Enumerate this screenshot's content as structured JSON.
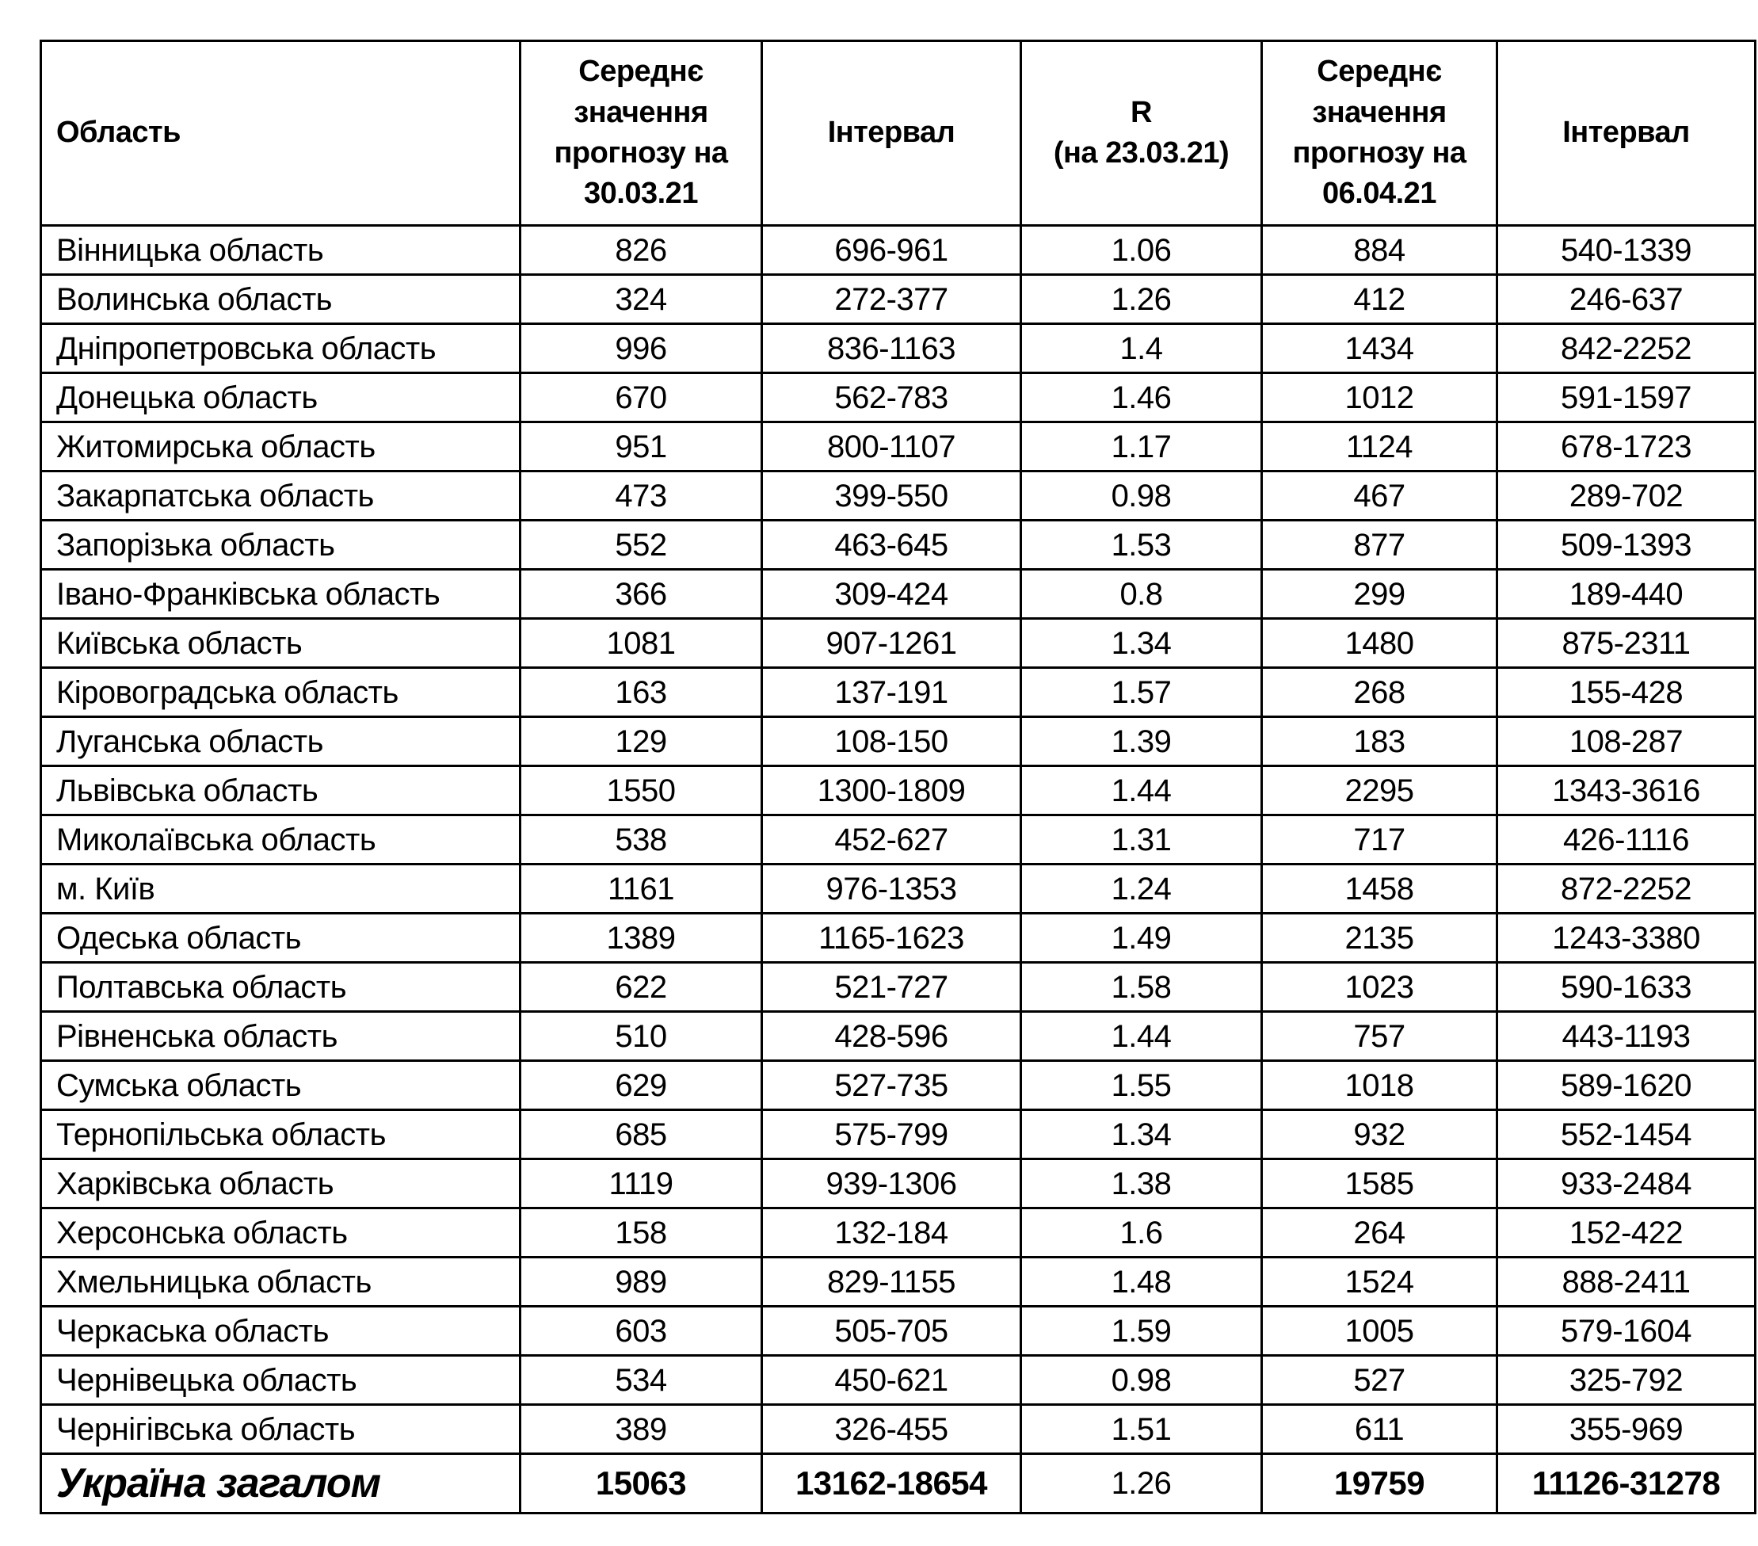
{
  "colors": {
    "background": "#ffffff",
    "text": "#000000",
    "border": "#000000"
  },
  "table": {
    "headers": {
      "region": "Область",
      "mean_30_03": "Середнє значення прогнозу на 30.03.21",
      "interval_1": "Інтервал",
      "r": "R\n(на 23.03.21)",
      "mean_06_04": "Середнє значення прогнозу на 06.04.21",
      "interval_2": "Інтервал"
    },
    "rows": [
      {
        "region": "Вінницька область",
        "mean_30_03": "826",
        "interval_30_03": "696-961",
        "r_value": "1.06",
        "mean_06_04": "884",
        "interval_06_04": "540-1339"
      },
      {
        "region": "Волинська область",
        "mean_30_03": "324",
        "interval_30_03": "272-377",
        "r_value": "1.26",
        "mean_06_04": "412",
        "interval_06_04": "246-637"
      },
      {
        "region": "Дніпропетровська область",
        "mean_30_03": "996",
        "interval_30_03": "836-1163",
        "r_value": "1.4",
        "mean_06_04": "1434",
        "interval_06_04": "842-2252"
      },
      {
        "region": "Донецька область",
        "mean_30_03": "670",
        "interval_30_03": "562-783",
        "r_value": "1.46",
        "mean_06_04": "1012",
        "interval_06_04": "591-1597"
      },
      {
        "region": "Житомирська область",
        "mean_30_03": "951",
        "interval_30_03": "800-1107",
        "r_value": "1.17",
        "mean_06_04": "1124",
        "interval_06_04": "678-1723"
      },
      {
        "region": "Закарпатська область",
        "mean_30_03": "473",
        "interval_30_03": "399-550",
        "r_value": "0.98",
        "mean_06_04": "467",
        "interval_06_04": "289-702"
      },
      {
        "region": "Запорізька область",
        "mean_30_03": "552",
        "interval_30_03": "463-645",
        "r_value": "1.53",
        "mean_06_04": "877",
        "interval_06_04": "509-1393"
      },
      {
        "region": "Івано-Франківська область",
        "mean_30_03": "366",
        "interval_30_03": "309-424",
        "r_value": "0.8",
        "mean_06_04": "299",
        "interval_06_04": "189-440"
      },
      {
        "region": "Київська область",
        "mean_30_03": "1081",
        "interval_30_03": "907-1261",
        "r_value": "1.34",
        "mean_06_04": "1480",
        "interval_06_04": "875-2311"
      },
      {
        "region": "Кіровоградська область",
        "mean_30_03": "163",
        "interval_30_03": "137-191",
        "r_value": "1.57",
        "mean_06_04": "268",
        "interval_06_04": "155-428"
      },
      {
        "region": "Луганська область",
        "mean_30_03": "129",
        "interval_30_03": "108-150",
        "r_value": "1.39",
        "mean_06_04": "183",
        "interval_06_04": "108-287"
      },
      {
        "region": "Львівська область",
        "mean_30_03": "1550",
        "interval_30_03": "1300-1809",
        "r_value": "1.44",
        "mean_06_04": "2295",
        "interval_06_04": "1343-3616"
      },
      {
        "region": "Миколаївська область",
        "mean_30_03": "538",
        "interval_30_03": "452-627",
        "r_value": "1.31",
        "mean_06_04": "717",
        "interval_06_04": "426-1116"
      },
      {
        "region": "м. Київ",
        "mean_30_03": "1161",
        "interval_30_03": "976-1353",
        "r_value": "1.24",
        "mean_06_04": "1458",
        "interval_06_04": "872-2252"
      },
      {
        "region": "Одеська область",
        "mean_30_03": "1389",
        "interval_30_03": "1165-1623",
        "r_value": "1.49",
        "mean_06_04": "2135",
        "interval_06_04": "1243-3380"
      },
      {
        "region": "Полтавська область",
        "mean_30_03": "622",
        "interval_30_03": "521-727",
        "r_value": "1.58",
        "mean_06_04": "1023",
        "interval_06_04": "590-1633"
      },
      {
        "region": "Рівненська область",
        "mean_30_03": "510",
        "interval_30_03": "428-596",
        "r_value": "1.44",
        "mean_06_04": "757",
        "interval_06_04": "443-1193"
      },
      {
        "region": "Сумська область",
        "mean_30_03": "629",
        "interval_30_03": "527-735",
        "r_value": "1.55",
        "mean_06_04": "1018",
        "interval_06_04": "589-1620"
      },
      {
        "region": "Тернопільська область",
        "mean_30_03": "685",
        "interval_30_03": "575-799",
        "r_value": "1.34",
        "mean_06_04": "932",
        "interval_06_04": "552-1454"
      },
      {
        "region": "Харківська область",
        "mean_30_03": "1119",
        "interval_30_03": "939-1306",
        "r_value": "1.38",
        "mean_06_04": "1585",
        "interval_06_04": "933-2484"
      },
      {
        "region": "Херсонська область",
        "mean_30_03": "158",
        "interval_30_03": "132-184",
        "r_value": "1.6",
        "mean_06_04": "264",
        "interval_06_04": "152-422"
      },
      {
        "region": "Хмельницька область",
        "mean_30_03": "989",
        "interval_30_03": "829-1155",
        "r_value": "1.48",
        "mean_06_04": "1524",
        "interval_06_04": "888-2411"
      },
      {
        "region": "Черкаська область",
        "mean_30_03": "603",
        "interval_30_03": "505-705",
        "r_value": "1.59",
        "mean_06_04": "1005",
        "interval_06_04": "579-1604"
      },
      {
        "region": "Чернівецька область",
        "mean_30_03": "534",
        "interval_30_03": "450-621",
        "r_value": "0.98",
        "mean_06_04": "527",
        "interval_06_04": "325-792"
      },
      {
        "region": "Чернігівська область",
        "mean_30_03": "389",
        "interval_30_03": "326-455",
        "r_value": "1.51",
        "mean_06_04": "611",
        "interval_06_04": "355-969"
      }
    ],
    "total": {
      "region": "Україна загалом",
      "mean_30_03": "15063",
      "interval_30_03": "13162-18654",
      "r_value": "1.26",
      "mean_06_04": "19759",
      "interval_06_04": "11126-31278"
    }
  }
}
